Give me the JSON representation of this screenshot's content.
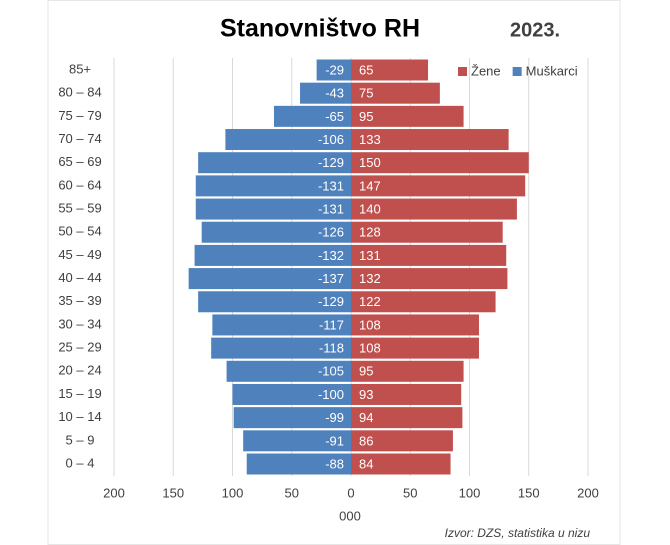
{
  "chart_data": {
    "type": "bar",
    "orientation": "horizontal",
    "title": "Stanovništvo RH",
    "subtitle": "2023.",
    "x_label": "000",
    "source": "Izvor: DZS, statistika u nizu",
    "categories": [
      "0 – 4",
      "5 – 9",
      "10 – 14",
      "15 – 19",
      "20 – 24",
      "25 – 29",
      "30 – 34",
      "35 – 39",
      "40 – 44",
      "45 – 49",
      "50 – 54",
      "55 – 59",
      "60 – 64",
      "65 – 69",
      "70 – 74",
      "75 – 79",
      "80 – 84",
      "85+"
    ],
    "series": [
      {
        "name": "Žene",
        "color": "#c0504d",
        "values": [
          84,
          86,
          94,
          93,
          95,
          108,
          108,
          122,
          132,
          131,
          128,
          140,
          147,
          150,
          133,
          95,
          75,
          65
        ]
      },
      {
        "name": "Muškarci",
        "color": "#4f81bd",
        "values": [
          -88,
          -91,
          -99,
          -100,
          -105,
          -118,
          -117,
          -129,
          -137,
          -132,
          -126,
          -131,
          -131,
          -129,
          -106,
          -65,
          -43,
          -29
        ]
      }
    ],
    "xlim": [
      -200,
      200
    ],
    "xticks": [
      {
        "value": -200,
        "label": "200"
      },
      {
        "value": -150,
        "label": "150"
      },
      {
        "value": -100,
        "label": "100"
      },
      {
        "value": -50,
        "label": "50"
      },
      0,
      50,
      100,
      150,
      200
    ],
    "grid": true,
    "legend": "top-right"
  }
}
